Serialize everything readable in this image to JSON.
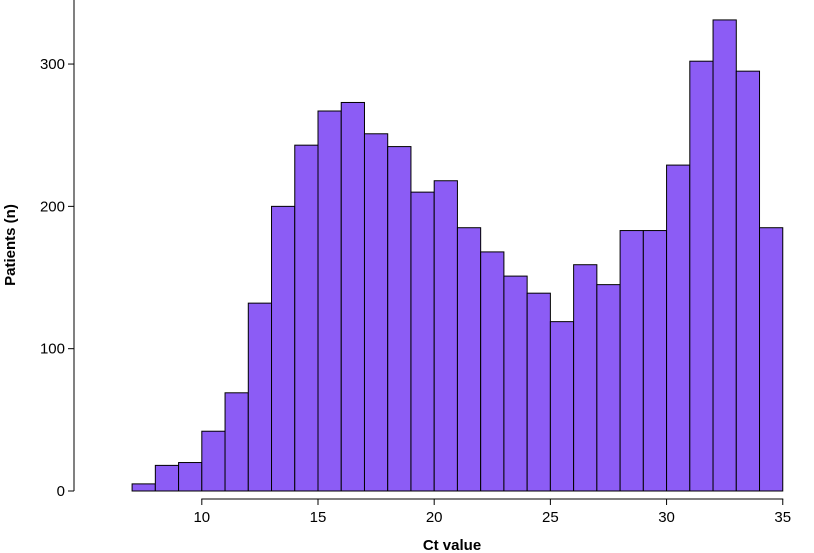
{
  "chart_data": {
    "type": "bar",
    "xlabel": "Ct value",
    "ylabel": "Patients (n)",
    "bin_width": 1,
    "bins": [
      {
        "x0": 7,
        "x1": 8,
        "count": 5
      },
      {
        "x0": 8,
        "x1": 9,
        "count": 18
      },
      {
        "x0": 9,
        "x1": 10,
        "count": 20
      },
      {
        "x0": 10,
        "x1": 11,
        "count": 42
      },
      {
        "x0": 11,
        "x1": 12,
        "count": 69
      },
      {
        "x0": 12,
        "x1": 13,
        "count": 132
      },
      {
        "x0": 13,
        "x1": 14,
        "count": 200
      },
      {
        "x0": 14,
        "x1": 15,
        "count": 243
      },
      {
        "x0": 15,
        "x1": 16,
        "count": 267
      },
      {
        "x0": 16,
        "x1": 17,
        "count": 273
      },
      {
        "x0": 17,
        "x1": 18,
        "count": 251
      },
      {
        "x0": 18,
        "x1": 19,
        "count": 242
      },
      {
        "x0": 19,
        "x1": 20,
        "count": 210
      },
      {
        "x0": 20,
        "x1": 21,
        "count": 218
      },
      {
        "x0": 21,
        "x1": 22,
        "count": 185
      },
      {
        "x0": 22,
        "x1": 23,
        "count": 168
      },
      {
        "x0": 23,
        "x1": 24,
        "count": 151
      },
      {
        "x0": 24,
        "x1": 25,
        "count": 139
      },
      {
        "x0": 25,
        "x1": 26,
        "count": 119
      },
      {
        "x0": 26,
        "x1": 27,
        "count": 159
      },
      {
        "x0": 27,
        "x1": 28,
        "count": 145
      },
      {
        "x0": 28,
        "x1": 29,
        "count": 183
      },
      {
        "x0": 29,
        "x1": 30,
        "count": 183
      },
      {
        "x0": 30,
        "x1": 31,
        "count": 229
      },
      {
        "x0": 31,
        "x1": 32,
        "count": 302
      },
      {
        "x0": 32,
        "x1": 33,
        "count": 331
      },
      {
        "x0": 33,
        "x1": 34,
        "count": 295
      },
      {
        "x0": 34,
        "x1": 35,
        "count": 185
      }
    ],
    "xticks": [
      "10",
      "15",
      "20",
      "25",
      "30",
      "35"
    ],
    "yticks": [
      "0",
      "100",
      "200",
      "300"
    ],
    "xlim": [
      4.5,
      36
    ],
    "ylim": [
      0,
      345
    ],
    "bar_color": "#8c5cf5",
    "edge_color": "#000000",
    "grid": false,
    "legend": "none"
  }
}
